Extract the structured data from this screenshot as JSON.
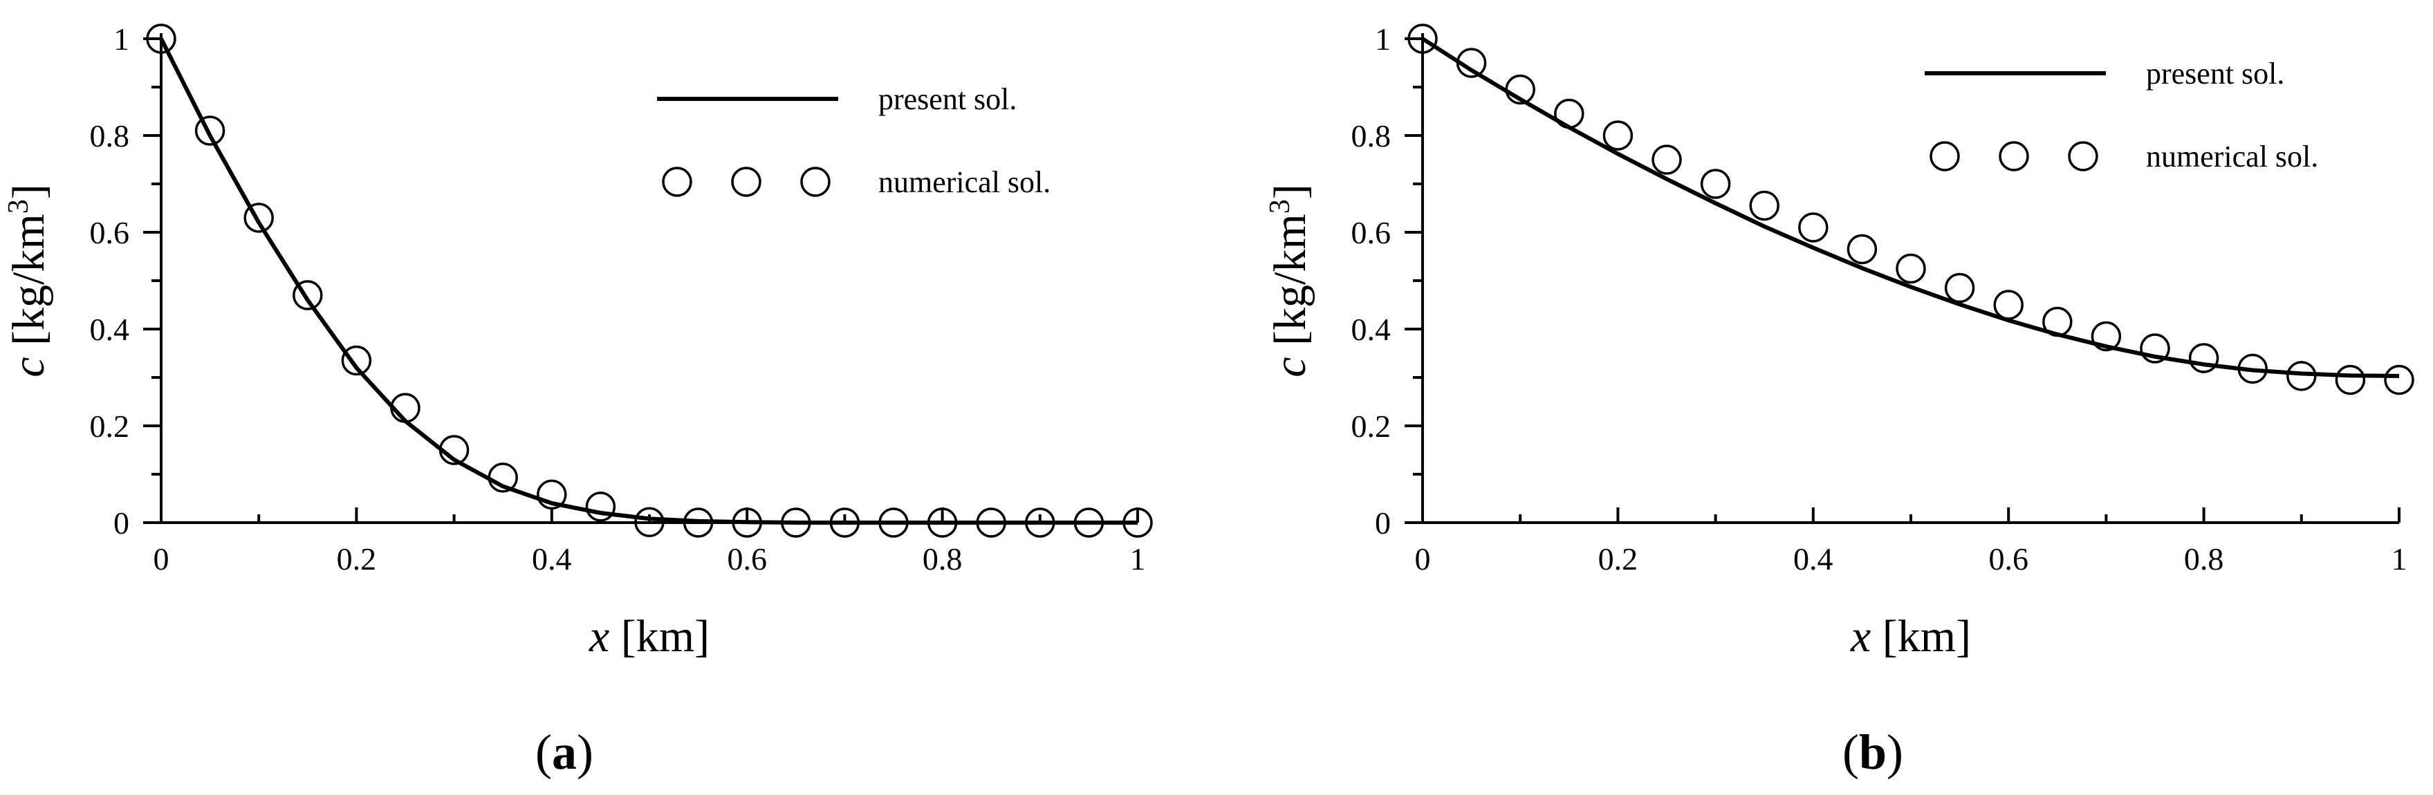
{
  "chart_data": [
    {
      "type": "line",
      "panel_label": {
        "open": "(",
        "letter": "a",
        "close": ")"
      },
      "xlabel": {
        "var": "x",
        "unit": " [km]"
      },
      "ylabel": {
        "var": "c",
        "unit": " [kg/km",
        "sup": "3",
        "end": "]"
      },
      "xlim": [
        0,
        1
      ],
      "ylim": [
        0,
        1
      ],
      "xticks": [
        "0",
        "0.2",
        "0.4",
        "0.6",
        "0.8",
        "1"
      ],
      "yticks": [
        "0",
        "0.2",
        "0.4",
        "0.6",
        "0.8",
        "1"
      ],
      "legend": {
        "position": "top-right",
        "line_label": "present sol.",
        "marker_label": "numerical sol."
      },
      "series": [
        {
          "name": "present sol.",
          "style": "line",
          "x": [
            0,
            0.05,
            0.1,
            0.15,
            0.2,
            0.25,
            0.3,
            0.35,
            0.4,
            0.45,
            0.5,
            0.55,
            0.6,
            0.65,
            0.7,
            0.75,
            0.8,
            0.85,
            0.9,
            0.95,
            1.0
          ],
          "y": [
            1.0,
            0.8,
            0.62,
            0.46,
            0.32,
            0.21,
            0.13,
            0.075,
            0.04,
            0.02,
            0.008,
            0.003,
            0.001,
            0,
            0,
            0,
            0,
            0,
            0,
            0,
            0
          ]
        },
        {
          "name": "numerical sol.",
          "style": "markers",
          "x": [
            0,
            0.05,
            0.1,
            0.15,
            0.2,
            0.25,
            0.3,
            0.35,
            0.4,
            0.45,
            0.5,
            0.55,
            0.6,
            0.65,
            0.7,
            0.75,
            0.8,
            0.85,
            0.9,
            0.95,
            1.0
          ],
          "y": [
            1.0,
            0.81,
            0.63,
            0.47,
            0.335,
            0.237,
            0.15,
            0.093,
            0.058,
            0.033,
            0.001,
            0,
            0,
            0,
            0,
            0,
            0,
            0,
            0,
            0,
            0
          ]
        }
      ]
    },
    {
      "type": "line",
      "panel_label": {
        "open": "(",
        "letter": "b",
        "close": ")"
      },
      "xlabel": {
        "var": "x",
        "unit": " [km]"
      },
      "ylabel": {
        "var": "c",
        "unit": " [kg/km",
        "sup": "3",
        "end": "]"
      },
      "xlim": [
        0,
        1
      ],
      "ylim": [
        0,
        1
      ],
      "xticks": [
        "0",
        "0.2",
        "0.4",
        "0.6",
        "0.8",
        "1"
      ],
      "yticks": [
        "0",
        "0.2",
        "0.4",
        "0.6",
        "0.8",
        "1"
      ],
      "legend": {
        "position": "top-right",
        "line_label": "present sol.",
        "marker_label": "numerical sol."
      },
      "series": [
        {
          "name": "present sol.",
          "style": "line",
          "x": [
            0,
            0.05,
            0.1,
            0.15,
            0.2,
            0.25,
            0.3,
            0.35,
            0.4,
            0.45,
            0.5,
            0.55,
            0.6,
            0.65,
            0.7,
            0.75,
            0.8,
            0.85,
            0.9,
            0.95,
            1.0
          ],
          "y": [
            1.0,
            0.935,
            0.875,
            0.817,
            0.762,
            0.71,
            0.66,
            0.612,
            0.568,
            0.526,
            0.487,
            0.451,
            0.418,
            0.389,
            0.364,
            0.343,
            0.327,
            0.315,
            0.308,
            0.304,
            0.303
          ]
        },
        {
          "name": "numerical sol.",
          "style": "markers",
          "x": [
            0,
            0.05,
            0.1,
            0.15,
            0.2,
            0.25,
            0.3,
            0.35,
            0.4,
            0.45,
            0.5,
            0.55,
            0.6,
            0.65,
            0.7,
            0.75,
            0.8,
            0.85,
            0.9,
            0.95,
            1.0
          ],
          "y": [
            1.0,
            0.95,
            0.895,
            0.845,
            0.8,
            0.75,
            0.7,
            0.655,
            0.61,
            0.565,
            0.525,
            0.485,
            0.45,
            0.415,
            0.385,
            0.36,
            0.34,
            0.318,
            0.303,
            0.295,
            0.295
          ]
        }
      ]
    }
  ]
}
